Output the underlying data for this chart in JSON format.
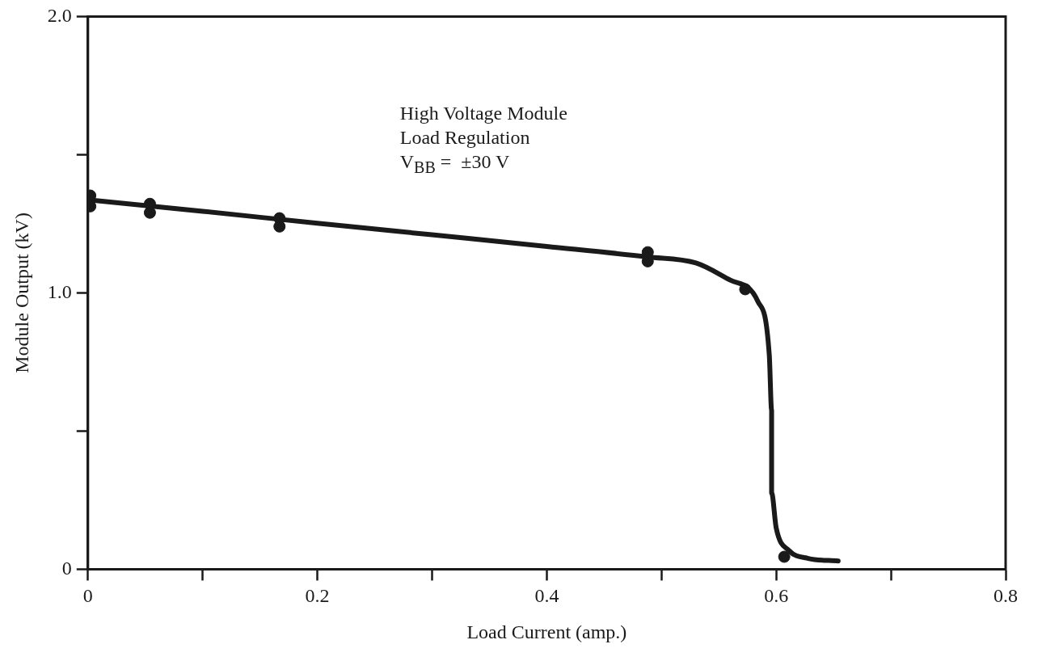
{
  "chart_data": {
    "type": "line",
    "xlabel": "Load Current (amp.)",
    "ylabel": "Module Output (kV)",
    "annotations": [
      "High Voltage Module",
      "Load Regulation",
      "V$_{BB}$ =  ±30 V"
    ],
    "xlim": [
      0,
      0.8
    ],
    "xticks": [
      0,
      {
        "value": 0.1,
        "label": null
      },
      0.2,
      {
        "value": 0.3,
        "label": null
      },
      0.4,
      {
        "value": 0.5,
        "label": null
      },
      0.6,
      {
        "value": 0.7,
        "label": null
      },
      0.8
    ],
    "ylim": [
      0,
      2
    ],
    "yticks": [
      0,
      {
        "value": 0.5,
        "label": null
      },
      {
        "value": 1,
        "label": "1.0"
      },
      {
        "value": 1.5,
        "label": null
      },
      {
        "value": 2,
        "label": "2.0"
      }
    ],
    "legend": false,
    "series": [
      {
        "type": "line",
        "color": "#1a1a1a",
        "marker": "none",
        "line_style": "solid",
        "x": [
          0,
          0.1,
          0.2,
          0.3,
          0.4,
          0.488,
          0.53,
          0.56,
          0.584,
          0.594,
          0.596,
          0.596,
          0.6,
          0.611,
          0.628,
          0.654
        ],
        "values": [
          1.337,
          1.295,
          1.252,
          1.21,
          1.168,
          1.13,
          1.108,
          1.046,
          0.969,
          0.773,
          0.574,
          0.276,
          0.149,
          0.068,
          0.039,
          0.03
        ]
      },
      {
        "type": "scatter",
        "color": "#1a1a1a",
        "marker": "circle",
        "x": [
          0.002,
          0.002,
          0.054,
          0.054,
          0.167,
          0.167,
          0.488,
          0.488,
          0.573,
          0.607
        ],
        "values": [
          1.352,
          1.313,
          1.322,
          1.29,
          1.27,
          1.24,
          1.147,
          1.114,
          1.013,
          0.045
        ]
      }
    ]
  }
}
